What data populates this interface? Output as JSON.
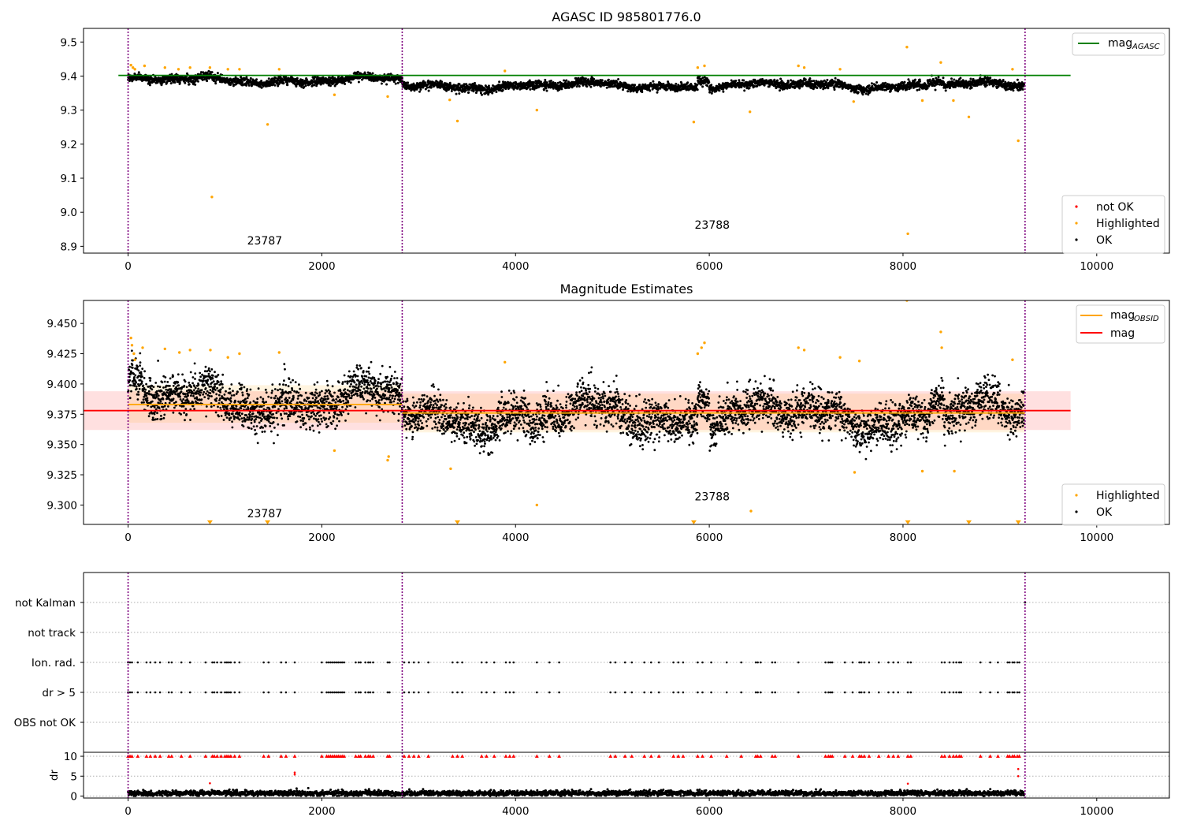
{
  "chart_data": [
    {
      "id": "agasc",
      "type": "scatter",
      "title": "AGASC ID 985801776.0",
      "xlim": [
        -460,
        10750
      ],
      "ylim": [
        8.88,
        9.54
      ],
      "xticks": [
        0,
        2000,
        4000,
        6000,
        8000,
        10000
      ],
      "xtick_labels": [
        "0",
        "2000",
        "4000",
        "6000",
        "8000",
        "10000"
      ],
      "yticks": [
        8.9,
        9.0,
        9.1,
        9.2,
        9.3,
        9.4,
        9.5
      ],
      "ytick_labels": [
        "8.9",
        "9.0",
        "9.1",
        "9.2",
        "9.3",
        "9.4",
        "9.5"
      ],
      "obsid_boundaries": [
        0,
        2830,
        9260
      ],
      "obsid_labels": [
        {
          "text": "23787",
          "x": 1410,
          "y": 8.905
        },
        {
          "text": "23788",
          "x": 6030,
          "y": 8.952
        }
      ],
      "hlines": [
        {
          "name": "mag",
          "subscript": "AGASC",
          "value": 9.402,
          "x": [
            -100,
            9730
          ],
          "color": "#008000"
        }
      ],
      "series": [
        {
          "name": "not OK",
          "color": "#ff0000",
          "points": []
        },
        {
          "name": "Highlighted",
          "color": "#ffa500",
          "points": [
            [
              30,
              9.432
            ],
            [
              50,
              9.425
            ],
            [
              70,
              9.42
            ],
            [
              170,
              9.43
            ],
            [
              380,
              9.425
            ],
            [
              520,
              9.42
            ],
            [
              640,
              9.425
            ],
            [
              845,
              9.425
            ],
            [
              865,
              9.045
            ],
            [
              1030,
              9.42
            ],
            [
              1150,
              9.42
            ],
            [
              1440,
              9.258
            ],
            [
              1560,
              9.42
            ],
            [
              2130,
              9.345
            ],
            [
              2680,
              9.34
            ],
            [
              3320,
              9.33
            ],
            [
              3400,
              9.268
            ],
            [
              3890,
              9.415
            ],
            [
              4220,
              9.3
            ],
            [
              5840,
              9.265
            ],
            [
              5880,
              9.425
            ],
            [
              5950,
              9.43
            ],
            [
              6420,
              9.295
            ],
            [
              6920,
              9.43
            ],
            [
              6980,
              9.425
            ],
            [
              7350,
              9.42
            ],
            [
              7490,
              9.325
            ],
            [
              8040,
              9.485
            ],
            [
              8050,
              8.937
            ],
            [
              8200,
              9.328
            ],
            [
              8390,
              9.44
            ],
            [
              8520,
              9.328
            ],
            [
              8680,
              9.28
            ],
            [
              9130,
              9.42
            ],
            [
              9190,
              9.21
            ]
          ]
        },
        {
          "name": "OK",
          "color": "#000000",
          "generator": "agasc_ok"
        }
      ],
      "legend_lines": {
        "entries": [
          "mag"
        ],
        "subscript": "AGASC",
        "placement": "upper right"
      },
      "legend_points": {
        "entries": [
          "not OK",
          "Highlighted",
          "OK"
        ],
        "placement": "lower right"
      }
    },
    {
      "id": "estimates",
      "type": "scatter",
      "title": "Magnitude Estimates",
      "xlim": [
        -460,
        10750
      ],
      "ylim": [
        9.284,
        9.469
      ],
      "xticks": [
        0,
        2000,
        4000,
        6000,
        8000,
        10000
      ],
      "xtick_labels": [
        "0",
        "2000",
        "4000",
        "6000",
        "8000",
        "10000"
      ],
      "yticks": [
        9.3,
        9.325,
        9.35,
        9.375,
        9.4,
        9.425,
        9.45
      ],
      "ytick_labels": [
        "9.300",
        "9.325",
        "9.350",
        "9.375",
        "9.400",
        "9.425",
        "9.450"
      ],
      "obsid_boundaries": [
        0,
        2830,
        9260
      ],
      "obsid_labels": [
        {
          "text": "23787",
          "x": 1410,
          "y": 9.29
        },
        {
          "text": "23788",
          "x": 6030,
          "y": 9.304
        }
      ],
      "bands": [
        {
          "x": [
            -460,
            9730
          ],
          "y": [
            9.362,
            9.394
          ],
          "color": "#ff0000",
          "opacity": 0.12
        },
        {
          "x": [
            0,
            2830
          ],
          "y": [
            9.368,
            9.399
          ],
          "color": "#ffa500",
          "opacity": 0.12
        },
        {
          "x": [
            2830,
            9260
          ],
          "y": [
            9.36,
            9.392
          ],
          "color": "#ffa500",
          "opacity": 0.12
        }
      ],
      "lines": [
        {
          "name": "mag",
          "subscript": "OBSID",
          "color": "#ffa500",
          "segments": [
            [
              0,
              2830,
              9.383
            ],
            [
              2830,
              9260,
              9.376
            ]
          ]
        },
        {
          "name": "mag",
          "subscript": "",
          "color": "#ff0000",
          "segments": [
            [
              -460,
              9730,
              9.378
            ]
          ]
        }
      ],
      "series": [
        {
          "name": "Highlighted",
          "color": "#ffa500",
          "points": [
            [
              30,
              9.438
            ],
            [
              40,
              9.432
            ],
            [
              60,
              9.425
            ],
            [
              70,
              9.42
            ],
            [
              150,
              9.43
            ],
            [
              380,
              9.429
            ],
            [
              530,
              9.426
            ],
            [
              640,
              9.428
            ],
            [
              850,
              9.428
            ],
            [
              1030,
              9.422
            ],
            [
              1150,
              9.425
            ],
            [
              1560,
              9.426
            ],
            [
              2130,
              9.345
            ],
            [
              2680,
              9.337
            ],
            [
              2690,
              9.34
            ],
            [
              3330,
              9.33
            ],
            [
              3890,
              9.418
            ],
            [
              4220,
              9.3
            ],
            [
              5880,
              9.425
            ],
            [
              5920,
              9.43
            ],
            [
              5950,
              9.434
            ],
            [
              6430,
              9.295
            ],
            [
              6920,
              9.43
            ],
            [
              6980,
              9.428
            ],
            [
              7350,
              9.422
            ],
            [
              7500,
              9.327
            ],
            [
              7550,
              9.419
            ],
            [
              8040,
              9.469
            ],
            [
              8200,
              9.328
            ],
            [
              8390,
              9.443
            ],
            [
              8400,
              9.43
            ],
            [
              8530,
              9.328
            ],
            [
              9130,
              9.42
            ]
          ]
        },
        {
          "name": "Highlighted (off-scale)",
          "color": "#ffa500",
          "points": [
            [
              845,
              9.286
            ],
            [
              1440,
              9.286
            ],
            [
              3400,
              9.286
            ],
            [
              5840,
              9.286
            ],
            [
              8050,
              9.286
            ],
            [
              8680,
              9.286
            ],
            [
              9190,
              9.286
            ]
          ]
        },
        {
          "name": "OK",
          "color": "#000000",
          "generator": "estimates_ok"
        }
      ],
      "legend_lines": {
        "entries": [
          "mag",
          "mag"
        ],
        "subscripts": [
          "OBSID",
          ""
        ],
        "colors": [
          "#ffa500",
          "#ff0000"
        ],
        "placement": "upper right"
      },
      "legend_points": {
        "entries": [
          "Highlighted",
          "OK"
        ],
        "placement": "lower right"
      }
    },
    {
      "id": "flags",
      "type": "scatter",
      "xlim": [
        -460,
        10750
      ],
      "categories": [
        "not Kalman",
        "not track",
        "Ion. rad.",
        "dr > 5",
        "OBS not OK"
      ],
      "obsid_boundaries": [
        0,
        2830,
        9260
      ],
      "flag_points": {
        "Ion. rad.": [
          0,
          20,
          40,
          100,
          190,
          230,
          280,
          330,
          420,
          450,
          550,
          640,
          800,
          870,
          890,
          920,
          960,
          1000,
          1020,
          1040,
          1060,
          1100,
          1150,
          1400,
          1450,
          1580,
          1630,
          1720,
          2000,
          2050,
          2070,
          2090,
          2110,
          2130,
          2150,
          2170,
          2190,
          2210,
          2230,
          2350,
          2380,
          2400,
          2450,
          2480,
          2500,
          2530,
          2680,
          2700,
          2850,
          2900,
          2950,
          3000,
          3100,
          3350,
          3400,
          3450,
          3650,
          3700,
          3780,
          3900,
          3940,
          3980,
          4220,
          4350,
          4450,
          4980,
          5030,
          5130,
          5200,
          5330,
          5400,
          5480,
          5630,
          5680,
          5730,
          5880,
          5930,
          6020,
          6180,
          6330,
          6480,
          6500,
          6530,
          6650,
          6680,
          6920,
          7200,
          7230,
          7250,
          7270,
          7400,
          7480,
          7550,
          7570,
          7600,
          7650,
          7750,
          7850,
          7900,
          7950,
          8050,
          8080,
          8400,
          8430,
          8480,
          8520,
          8550,
          8580,
          8600,
          8800,
          8900,
          8980,
          9080,
          9100,
          9130,
          9150,
          9180,
          9200
        ],
        "dr > 5": [
          0,
          20,
          40,
          100,
          190,
          230,
          280,
          330,
          420,
          450,
          550,
          640,
          800,
          870,
          890,
          920,
          960,
          1000,
          1020,
          1040,
          1060,
          1100,
          1150,
          1400,
          1450,
          1580,
          1630,
          1720,
          2000,
          2050,
          2070,
          2090,
          2110,
          2130,
          2150,
          2170,
          2190,
          2210,
          2230,
          2350,
          2380,
          2400,
          2450,
          2480,
          2500,
          2530,
          2680,
          2700,
          2850,
          2900,
          2950,
          3000,
          3100,
          3350,
          3400,
          3450,
          3650,
          3700,
          3780,
          3900,
          3940,
          3980,
          4220,
          4350,
          4450,
          4980,
          5030,
          5130,
          5200,
          5330,
          5400,
          5480,
          5630,
          5680,
          5730,
          5880,
          5930,
          6020,
          6180,
          6330,
          6480,
          6500,
          6530,
          6650,
          6680,
          6920,
          7200,
          7230,
          7250,
          7270,
          7400,
          7480,
          7550,
          7570,
          7600,
          7650,
          7750,
          7850,
          7900,
          7950,
          8050,
          8080,
          8400,
          8430,
          8480,
          8520,
          8550,
          8580,
          8600,
          8800,
          8900,
          8980,
          9080,
          9100,
          9130,
          9150,
          9180,
          9200
        ],
        "not Kalman": [
          9260
        ]
      }
    },
    {
      "id": "dr",
      "type": "scatter",
      "xlim": [
        -460,
        10750
      ],
      "ylim": [
        -0.5,
        11
      ],
      "ylabel": "dr",
      "xticks": [
        0,
        2000,
        4000,
        6000,
        8000,
        10000
      ],
      "xtick_labels": [
        "0",
        "2000",
        "4000",
        "6000",
        "8000",
        "10000"
      ],
      "yticks": [
        0,
        5,
        10
      ],
      "ytick_labels": [
        "0",
        "5",
        "10"
      ],
      "obsid_boundaries": [
        0,
        2830,
        9260
      ],
      "series": [
        {
          "name": "dr",
          "color": "#000000",
          "generator": "dr_ok"
        },
        {
          "name": "dr (flagged)",
          "color": "#ff0000",
          "points": [
            [
              845,
              3.2
            ],
            [
              1720,
              5.4
            ],
            [
              1720,
              5.9
            ],
            [
              8050,
              3.1
            ],
            [
              9190,
              6.8
            ],
            [
              9190,
              5.0
            ]
          ]
        },
        {
          "name": "dr > 10",
          "color": "#ff0000",
          "x": [
            0,
            20,
            40,
            100,
            190,
            230,
            280,
            330,
            420,
            450,
            550,
            640,
            800,
            870,
            890,
            920,
            960,
            1000,
            1020,
            1040,
            1060,
            1100,
            1150,
            1400,
            1450,
            1580,
            1630,
            1720,
            2000,
            2050,
            2070,
            2090,
            2110,
            2130,
            2150,
            2170,
            2190,
            2210,
            2230,
            2350,
            2380,
            2400,
            2450,
            2480,
            2500,
            2530,
            2680,
            2700,
            2850,
            2900,
            2950,
            3000,
            3100,
            3350,
            3400,
            3450,
            3650,
            3700,
            3780,
            3900,
            3940,
            3980,
            4220,
            4350,
            4450,
            4980,
            5030,
            5130,
            5200,
            5330,
            5400,
            5480,
            5630,
            5680,
            5730,
            5880,
            5930,
            6020,
            6180,
            6330,
            6480,
            6500,
            6530,
            6650,
            6680,
            6920,
            7200,
            7230,
            7250,
            7270,
            7400,
            7480,
            7550,
            7570,
            7600,
            7650,
            7750,
            7850,
            7900,
            7950,
            8050,
            8080,
            8400,
            8430,
            8480,
            8520,
            8550,
            8580,
            8600,
            8800,
            8900,
            8980,
            9080,
            9100,
            9130,
            9150,
            9180,
            9200
          ],
          "value": 10
        }
      ]
    }
  ]
}
